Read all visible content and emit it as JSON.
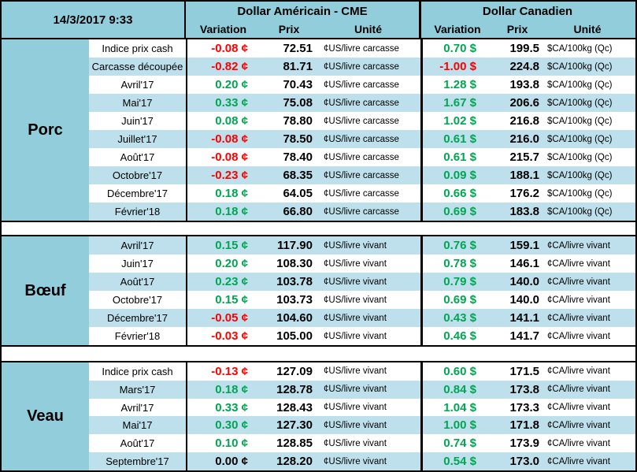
{
  "header": {
    "timestamp": "14/3/2017 9:33",
    "us_title": "Dollar Américain - CME",
    "ca_title": "Dollar Canadien",
    "col_variation": "Variation",
    "col_prix": "Prix",
    "col_unite": "Unité"
  },
  "colors": {
    "header-bg": "#92CDDC",
    "stripe-bg": "#BDE0EC",
    "positive": "#00A651",
    "negative": "#FF0000",
    "zero": "#000000",
    "border": "#000000"
  },
  "sections": [
    {
      "category": "Porc",
      "us_unit": "¢US/livre carcasse",
      "ca_unit": "$CA/100kg (Qc)",
      "rows": [
        {
          "label": "Indice prix cash",
          "us_var": "-0.08 ¢",
          "us_prix": "72.51",
          "ca_var": "0.70 $",
          "ca_prix": "199.5"
        },
        {
          "label": "Carcasse découpée",
          "us_var": "-0.82 ¢",
          "us_prix": "81.71",
          "ca_var": "-1.00 $",
          "ca_prix": "224.8"
        },
        {
          "label": "Avril'17",
          "us_var": "0.20 ¢",
          "us_prix": "70.43",
          "ca_var": "1.28 $",
          "ca_prix": "193.8"
        },
        {
          "label": "Mai'17",
          "us_var": "0.33 ¢",
          "us_prix": "75.08",
          "ca_var": "1.67 $",
          "ca_prix": "206.6"
        },
        {
          "label": "Juin'17",
          "us_var": "0.08 ¢",
          "us_prix": "78.80",
          "ca_var": "1.02 $",
          "ca_prix": "216.8"
        },
        {
          "label": "Juillet'17",
          "us_var": "-0.08 ¢",
          "us_prix": "78.50",
          "ca_var": "0.61 $",
          "ca_prix": "216.0"
        },
        {
          "label": "Août'17",
          "us_var": "-0.08 ¢",
          "us_prix": "78.40",
          "ca_var": "0.61 $",
          "ca_prix": "215.7"
        },
        {
          "label": "Octobre'17",
          "us_var": "-0.23 ¢",
          "us_prix": "68.35",
          "ca_var": "0.09 $",
          "ca_prix": "188.1"
        },
        {
          "label": "Décembre'17",
          "us_var": "0.18 ¢",
          "us_prix": "64.05",
          "ca_var": "0.66 $",
          "ca_prix": "176.2"
        },
        {
          "label": "Février'18",
          "us_var": "0.18 ¢",
          "us_prix": "66.80",
          "ca_var": "0.69 $",
          "ca_prix": "183.8"
        }
      ]
    },
    {
      "category": "Bœuf",
      "us_unit": "¢US/livre vivant",
      "ca_unit": "¢CA/livre vivant",
      "rows": [
        {
          "label": "Avril'17",
          "us_var": "0.15 ¢",
          "us_prix": "117.90",
          "ca_var": "0.76 $",
          "ca_prix": "159.1"
        },
        {
          "label": "Juin'17",
          "us_var": "0.20 ¢",
          "us_prix": "108.30",
          "ca_var": "0.78 $",
          "ca_prix": "146.1"
        },
        {
          "label": "Août'17",
          "us_var": "0.23 ¢",
          "us_prix": "103.78",
          "ca_var": "0.79 $",
          "ca_prix": "140.0"
        },
        {
          "label": "Octobre'17",
          "us_var": "0.15 ¢",
          "us_prix": "103.73",
          "ca_var": "0.69 $",
          "ca_prix": "140.0"
        },
        {
          "label": "Décembre'17",
          "us_var": "-0.05 ¢",
          "us_prix": "104.60",
          "ca_var": "0.43 $",
          "ca_prix": "141.1"
        },
        {
          "label": "Février'18",
          "us_var": "-0.03 ¢",
          "us_prix": "105.00",
          "ca_var": "0.46 $",
          "ca_prix": "141.7"
        }
      ]
    },
    {
      "category": "Veau",
      "us_unit": "¢US/livre vivant",
      "ca_unit": "¢CA/livre vivant",
      "rows": [
        {
          "label": "Indice prix cash",
          "us_var": "-0.13 ¢",
          "us_prix": "127.09",
          "ca_var": "0.60 $",
          "ca_prix": "171.5"
        },
        {
          "label": "Mars'17",
          "us_var": "0.18 ¢",
          "us_prix": "128.78",
          "ca_var": "0.84 $",
          "ca_prix": "173.8"
        },
        {
          "label": "Avril'17",
          "us_var": "0.33 ¢",
          "us_prix": "128.43",
          "ca_var": "1.04 $",
          "ca_prix": "173.3"
        },
        {
          "label": "Mai'17",
          "us_var": "0.30 ¢",
          "us_prix": "127.30",
          "ca_var": "1.00 $",
          "ca_prix": "171.8"
        },
        {
          "label": "Août'17",
          "us_var": "0.10 ¢",
          "us_prix": "128.85",
          "ca_var": "0.74 $",
          "ca_prix": "173.9"
        },
        {
          "label": "Septembre'17",
          "us_var": "0.00 ¢",
          "us_prix": "128.20",
          "ca_var": "0.54 $",
          "ca_prix": "173.0"
        }
      ]
    }
  ]
}
